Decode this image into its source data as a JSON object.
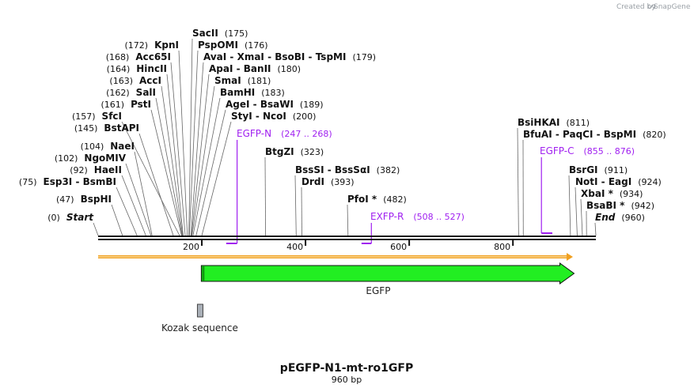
{
  "credit": {
    "text": "Created by",
    "brand": "SnapGene"
  },
  "title": "pEGFP-N1-mt-ro1GFP",
  "length_label": "960 bp",
  "sequence_length": 960,
  "ruler": {
    "ticks": [
      200,
      400,
      600,
      800
    ]
  },
  "labels": [
    {
      "name": "SacII",
      "pos": "(175)",
      "site": 175
    },
    {
      "name": "KpnI",
      "pos": "(172)",
      "site": 172
    },
    {
      "name": "PspOMI",
      "pos": "(176)",
      "site": 176
    },
    {
      "name": "Acc65I",
      "pos": "(168)",
      "site": 168
    },
    {
      "name": "AvaI - XmaI - BsoBI - TspMI",
      "pos": "(179)",
      "site": 179
    },
    {
      "name": "HincII",
      "pos": "(164)",
      "site": 164
    },
    {
      "name": "ApaI - BanII",
      "pos": "(180)",
      "site": 180
    },
    {
      "name": "AccI",
      "pos": "(163)",
      "site": 163
    },
    {
      "name": "SmaI",
      "pos": "(181)",
      "site": 181
    },
    {
      "name": "SalI",
      "pos": "(162)",
      "site": 162
    },
    {
      "name": "BamHI",
      "pos": "(183)",
      "site": 183
    },
    {
      "name": "PstI",
      "pos": "(161)",
      "site": 161
    },
    {
      "name": "AgeI - BsaWI",
      "pos": "(189)",
      "site": 189
    },
    {
      "name": "SfcI",
      "pos": "(157)",
      "site": 157
    },
    {
      "name": "StyI - NcoI",
      "pos": "(200)",
      "site": 200
    },
    {
      "name": "BstAPI",
      "pos": "(145)",
      "site": 145
    },
    {
      "name": "BsiHKAI",
      "pos": "(811)",
      "site": 811
    },
    {
      "name": "BfuAI - PaqCI - BspMI",
      "pos": "(820)",
      "site": 820
    },
    {
      "name": "NaeI",
      "pos": "(104)",
      "site": 104
    },
    {
      "name": "BtgZI",
      "pos": "(323)",
      "site": 323
    },
    {
      "name": "NgoMIV",
      "pos": "(102)",
      "site": 102
    },
    {
      "name": "HaeII",
      "pos": "(92)",
      "site": 92
    },
    {
      "name": "BssSI - BssSαI",
      "pos": "(382)",
      "site": 382
    },
    {
      "name": "BsrGI",
      "pos": "(911)",
      "site": 911
    },
    {
      "name": "Esp3I - BsmBI",
      "pos": "(75)",
      "site": 75
    },
    {
      "name": "DrdI",
      "pos": "(393)",
      "site": 393
    },
    {
      "name": "NotI - EagI",
      "pos": "(924)",
      "site": 924
    },
    {
      "name": "XbaI *",
      "pos": "(934)",
      "site": 934
    },
    {
      "name": "BspHI",
      "pos": "(47)",
      "site": 47
    },
    {
      "name": "PfoI *",
      "pos": "(482)",
      "site": 482
    },
    {
      "name": "BsaBI *",
      "pos": "(942)",
      "site": 942
    },
    {
      "name": "Start",
      "pos": "(0)",
      "site": 0,
      "italic": true
    },
    {
      "name": "End",
      "pos": "(960)",
      "site": 960,
      "italic": true
    }
  ],
  "primers": [
    {
      "name": "EGFP-N",
      "range": "(247 .. 268)",
      "start": 247,
      "end": 268,
      "strand": "reverse"
    },
    {
      "name": "EGFP-C",
      "range": "(855 .. 876)",
      "start": 855,
      "end": 876,
      "strand": "forward"
    },
    {
      "name": "EXFP-R",
      "range": "(508 .. 527)",
      "start": 508,
      "end": 527,
      "strand": "reverse"
    }
  ],
  "features": [
    {
      "name": "EGFP",
      "start": 199,
      "end": 918,
      "color": "#22ee22",
      "type": "arrow"
    },
    {
      "name": "Kozak sequence",
      "start": 193,
      "end": 202,
      "color": "#aab0b8",
      "type": "box"
    }
  ],
  "colors": {
    "primer": "#a020f0",
    "orf": "#f0a020",
    "egfp": "#22ee22",
    "kozak": "#aab0b8"
  }
}
